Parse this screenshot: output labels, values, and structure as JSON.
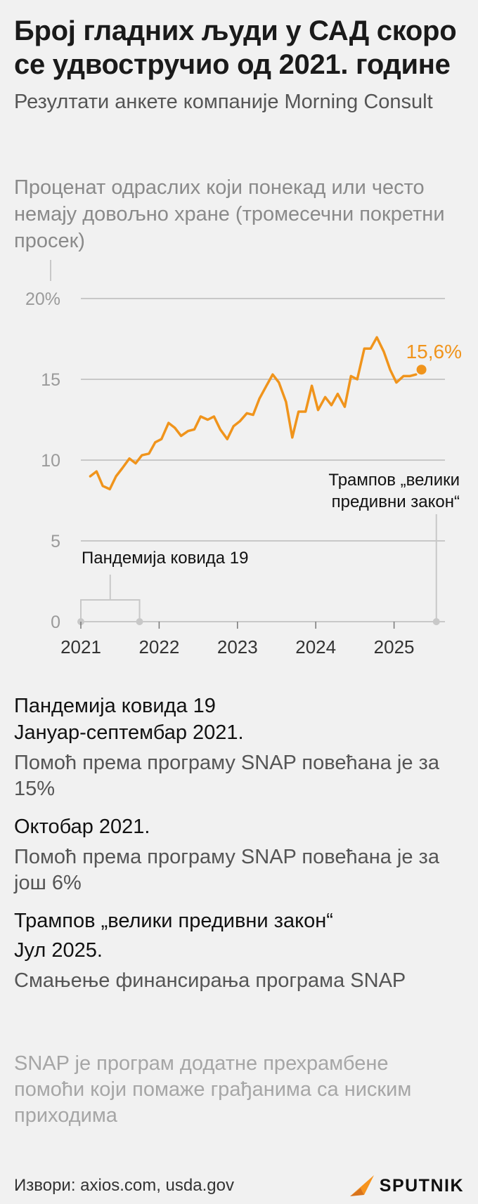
{
  "title": "Број гладних људи у САД скоро се удвостручио од 2021. године",
  "subtitle": "Резултати анкете компаније Morning Consult",
  "unit_note": "Проценат одраслих који понекад или често немају довољно хране (тромесечни покретни просек)",
  "colors": {
    "line": "#f0941c",
    "axis": "#c8c8c8",
    "text_muted": "#8a8a8a",
    "logo_orange": "#f7941d"
  },
  "chart_data": {
    "type": "line",
    "ylim": [
      0,
      20
    ],
    "y_ticks": [
      {
        "value": 20,
        "label": "20%"
      },
      {
        "value": 15,
        "label": "15"
      },
      {
        "value": 10,
        "label": "10"
      },
      {
        "value": 5,
        "label": "5"
      },
      {
        "value": 0,
        "label": "0"
      }
    ],
    "x_range": [
      2021.0,
      2025.65
    ],
    "x_ticks": [
      {
        "value": 2021,
        "label": "2021"
      },
      {
        "value": 2022,
        "label": "2022"
      },
      {
        "value": 2023,
        "label": "2023"
      },
      {
        "value": 2024,
        "label": "2024"
      },
      {
        "value": 2025,
        "label": "2025"
      }
    ],
    "series": [
      {
        "name": "Проценат одраслих без довољно хране",
        "x": [
          2021.12,
          2021.2,
          2021.28,
          2021.37,
          2021.45,
          2021.53,
          2021.62,
          2021.7,
          2021.78,
          2021.87,
          2021.95,
          2022.03,
          2022.12,
          2022.2,
          2022.28,
          2022.37,
          2022.45,
          2022.53,
          2022.62,
          2022.7,
          2022.78,
          2022.87,
          2022.95,
          2023.03,
          2023.12,
          2023.2,
          2023.28,
          2023.37,
          2023.45,
          2023.53,
          2023.62,
          2023.7,
          2023.78,
          2023.87,
          2023.95,
          2024.03,
          2024.12,
          2024.2,
          2024.28,
          2024.37,
          2024.45,
          2024.53,
          2024.62,
          2024.7,
          2024.78,
          2024.87,
          2024.95,
          2025.03,
          2025.12,
          2025.2,
          2025.28
        ],
        "y": [
          9.0,
          9.3,
          8.4,
          8.2,
          9.0,
          9.5,
          10.1,
          9.8,
          10.3,
          10.4,
          11.1,
          11.3,
          12.3,
          12.0,
          11.5,
          11.8,
          11.9,
          12.7,
          12.5,
          12.7,
          11.9,
          11.3,
          12.1,
          12.4,
          12.9,
          12.8,
          13.8,
          14.6,
          15.3,
          14.8,
          13.6,
          11.4,
          13.0,
          13.0,
          14.6,
          13.1,
          13.9,
          13.4,
          14.1,
          13.3,
          15.2,
          15.0,
          16.9,
          16.9,
          17.6,
          16.7,
          15.6,
          14.8,
          15.2,
          15.2,
          15.3
        ]
      }
    ],
    "endpoint": {
      "x": 2025.35,
      "y": 15.6,
      "label": "15,6%"
    },
    "annotations": [
      {
        "label": "Трампов „велики предивни закон“",
        "x": 2025.54
      },
      {
        "label": "Пандемија ковида 19",
        "x_start": 2021.0,
        "x_end": 2021.75
      }
    ]
  },
  "notes": [
    {
      "head": "Пандемија ковида 19",
      "date": "Јануар-септембар 2021.",
      "text": "Помоћ према програму SNAP повећана је за 15%"
    },
    {
      "head": "",
      "date": "Октобар 2021.",
      "text": "Помоћ према програму SNAP повећана је за још 6%"
    },
    {
      "head": "Трампов „велики предивни закон“",
      "date": "Јул 2025.",
      "text": "Смањење финансирања програма SNAP"
    }
  ],
  "footnote": "SNAP је програм додатне прехрамбене помоћи који помаже грађанима са ниским приходима",
  "source": "Извори: axios.com, usda.gov",
  "logo": {
    "icon": "sputnik-logo-icon",
    "text": "SPUTNIK"
  }
}
